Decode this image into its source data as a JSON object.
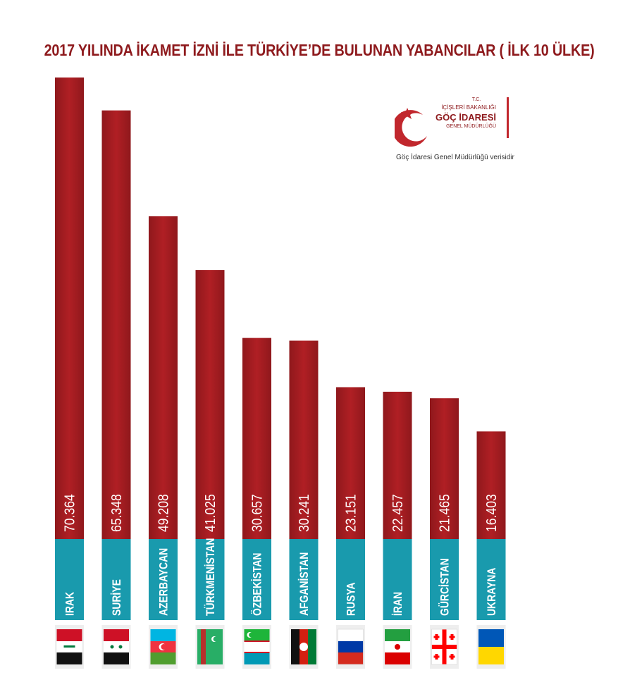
{
  "title": "2017 YILINDA İKAMET İZNİ İLE TÜRKİYE’DE BULUNAN YABANCILAR ( İLK 10 ÜLKE)",
  "logo": {
    "tc": "T.C.",
    "ministry": "İÇİŞLERİ BAKANLIĞI",
    "agency": "GÖÇ İDARESİ",
    "directorate": "GENEL MÜDÜRLÜĞÜ"
  },
  "source": "Göç İdaresi Genel Müdürlüğü verisidir",
  "colors": {
    "bar": "#b01f24",
    "bar_dark": "#8f181c",
    "label_band": "#199aad",
    "title": "#8e1a1d"
  },
  "chart_data": {
    "type": "bar",
    "categories": [
      "IRAK",
      "SURİYE",
      "AZERBAYCAN",
      "TÜRKMENİSTAN",
      "ÖZBEKİSTAN",
      "AFGANİSTAN",
      "RUSYA",
      "İRAN",
      "GÜRCİSTAN",
      "UKRAYNA"
    ],
    "value_labels": [
      "70.364",
      "65.348",
      "49.208",
      "41.025",
      "30.657",
      "30.241",
      "23.151",
      "22.457",
      "21.465",
      "16.403"
    ],
    "values": [
      70364,
      65348,
      49208,
      41025,
      30657,
      30241,
      23151,
      22457,
      21465,
      16403
    ],
    "flags": [
      "iraq-flag-icon",
      "syria-flag-icon",
      "azerbaijan-flag-icon",
      "turkmenistan-flag-icon",
      "uzbekistan-flag-icon",
      "afghanistan-flag-icon",
      "russia-flag-icon",
      "iran-flag-icon",
      "georgia-flag-icon",
      "ukraine-flag-icon"
    ],
    "title": "2017 YILINDA İKAMET İZNİ İLE TÜRKİYE’DE BULUNAN YABANCILAR ( İLK 10 ÜLKE)",
    "xlabel": "",
    "ylabel": "",
    "grid": false,
    "legend": "none"
  }
}
